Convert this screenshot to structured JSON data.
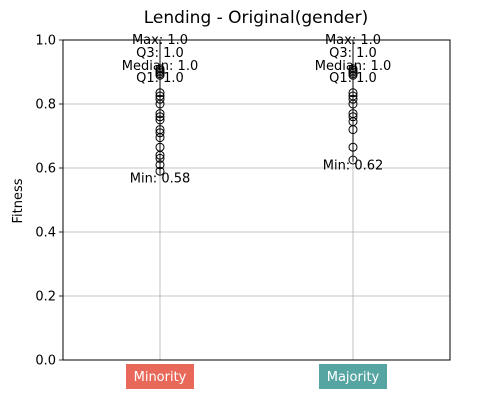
{
  "chart_data": {
    "type": "boxplot",
    "title": "Lending - Original(gender)",
    "xlabel": "",
    "ylabel": "Fitness",
    "ylim": [
      0,
      1
    ],
    "yticks": [
      0,
      0.2,
      0.4,
      0.6,
      0.8,
      1
    ],
    "yticklabels": [
      "0.0",
      "0.2",
      "0.4",
      "0.6",
      "0.8",
      "1.0"
    ],
    "grid": true,
    "categories": [
      {
        "label": "Minority",
        "color": "#e8695a",
        "stats": {
          "min": 0.58,
          "q1": 1.0,
          "median": 1.0,
          "q3": 1.0,
          "max": 1.0
        },
        "stat_labels": {
          "max": "Max: 1.0",
          "q3": "Q3: 1.0",
          "median": "Median: 1.0",
          "q1": "Q1: 1.0",
          "min": "Min: 0.58"
        },
        "outliers": [
          0.91,
          0.905,
          0.9,
          0.895,
          0.89,
          0.835,
          0.825,
          0.815,
          0.8,
          0.77,
          0.76,
          0.75,
          0.72,
          0.71,
          0.695,
          0.665,
          0.64,
          0.63,
          0.61,
          0.59
        ]
      },
      {
        "label": "Majority",
        "color": "#57a5a3",
        "stats": {
          "min": 0.62,
          "q1": 1.0,
          "median": 1.0,
          "q3": 1.0,
          "max": 1.0
        },
        "stat_labels": {
          "max": "Max: 1.0",
          "q3": "Q3: 1.0",
          "median": "Median: 1.0",
          "q1": "Q1: 1.0",
          "min": "Min: 0.62"
        },
        "outliers": [
          0.91,
          0.905,
          0.9,
          0.895,
          0.89,
          0.835,
          0.825,
          0.815,
          0.8,
          0.77,
          0.76,
          0.745,
          0.72,
          0.665,
          0.625
        ]
      }
    ]
  }
}
